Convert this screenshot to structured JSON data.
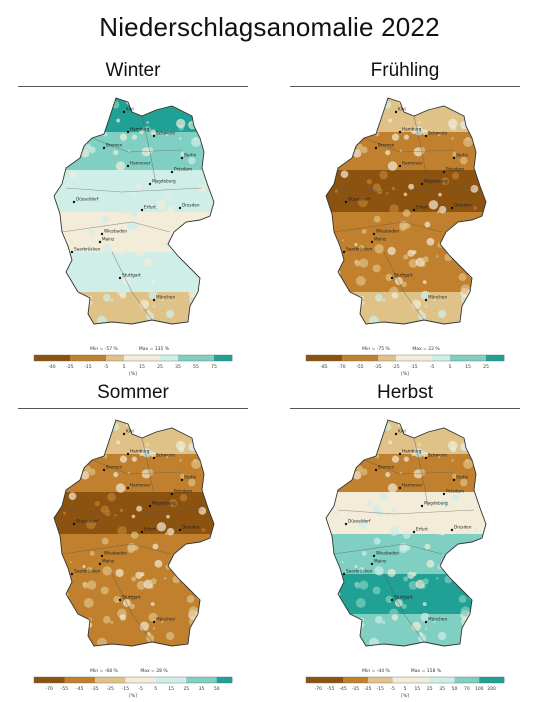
{
  "title": "Niederschlagsanomalie 2022",
  "cities": [
    "Kiel",
    "Hamburg",
    "Schwerin",
    "Bremen",
    "Berlin",
    "Hannover",
    "Potsdam",
    "Magdeburg",
    "Düsseldorf",
    "Erfurt",
    "Dresden",
    "Wiesbaden",
    "Mainz",
    "Saarbrücken",
    "Stuttgart",
    "München"
  ],
  "unit": "[%]",
  "colors": {
    "dry_strong": "#8c5210",
    "dry_mid": "#c0802d",
    "dry_light": "#dfc288",
    "neutral": "#f2ecd9",
    "wet_light": "#cfeee8",
    "wet_mid": "#7fd0c2",
    "wet_strong": "#21a095"
  },
  "panels": [
    {
      "name": "Winter",
      "min_label": "Min = -57 %",
      "max_label": "Max = 135 %",
      "ticks": [
        "-40",
        "-25",
        "-15",
        "-5",
        "5",
        "15",
        "25",
        "35",
        "55",
        "75"
      ],
      "tone": [
        "wet_strong",
        "wet_mid",
        "wet_light",
        "neutral",
        "wet_light",
        "dry_light"
      ]
    },
    {
      "name": "Frühling",
      "min_label": "Min = -75 %",
      "max_label": "Max = 22 %",
      "ticks": [
        "-85",
        "-70",
        "-55",
        "-35",
        "-25",
        "-15",
        "-5",
        "5",
        "15",
        "25"
      ],
      "tone": [
        "dry_light",
        "dry_mid",
        "dry_strong",
        "dry_mid",
        "dry_mid",
        "dry_light"
      ]
    },
    {
      "name": "Sommer",
      "min_label": "Min = -68 %",
      "max_label": "Max = 28 %",
      "ticks": [
        "-70",
        "-55",
        "-45",
        "-35",
        "-25",
        "-15",
        "-5",
        "5",
        "15",
        "25",
        "35",
        "50"
      ],
      "tone": [
        "dry_light",
        "dry_mid",
        "dry_strong",
        "dry_mid",
        "dry_mid",
        "dry_mid"
      ]
    },
    {
      "name": "Herbst",
      "min_label": "Min = -44 %",
      "max_label": "Max = 158 %",
      "ticks": [
        "-70",
        "-55",
        "-45",
        "-35",
        "-25",
        "-15",
        "-5",
        "5",
        "15",
        "25",
        "35",
        "50",
        "70",
        "100",
        "200"
      ],
      "tone": [
        "dry_light",
        "dry_mid",
        "neutral",
        "wet_mid",
        "wet_strong",
        "wet_mid"
      ]
    }
  ]
}
